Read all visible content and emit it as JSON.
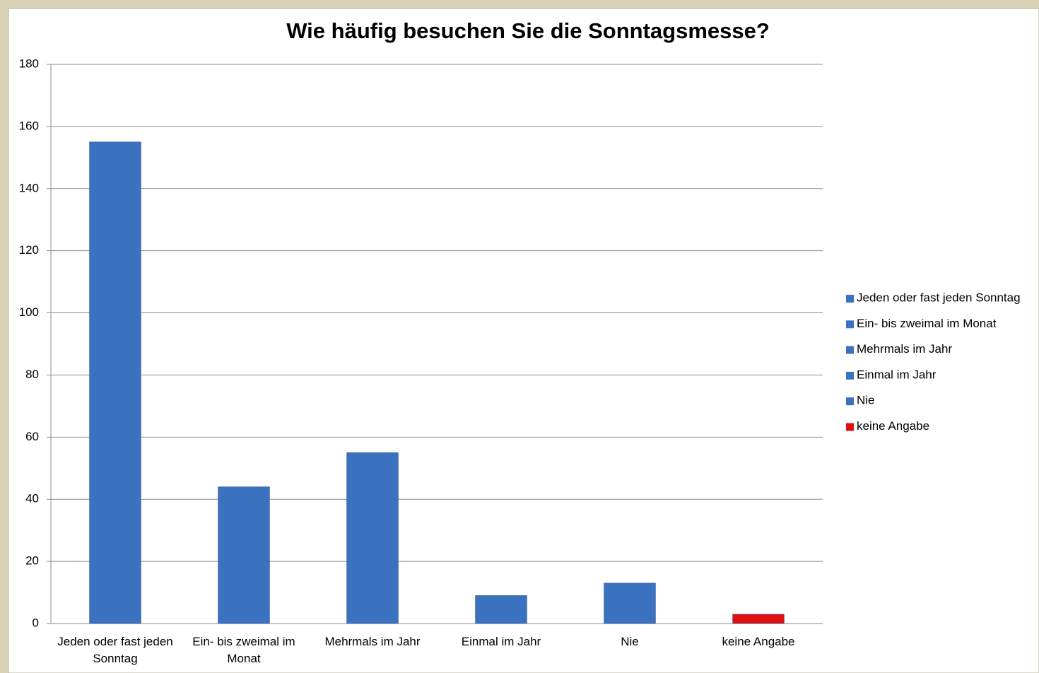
{
  "chart_data": {
    "type": "bar",
    "title": "Wie häufig besuchen Sie die Sonntagsmesse?",
    "categories": [
      "Jeden oder fast jeden Sonntag",
      "Ein- bis zweimal im Monat",
      "Mehrmals im Jahr",
      "Einmal im Jahr",
      "Nie",
      "keine Angabe"
    ],
    "values": [
      155,
      44,
      55,
      9,
      13,
      3
    ],
    "colors": [
      "#3b72bf",
      "#3b72bf",
      "#3b72bf",
      "#3b72bf",
      "#3b72bf",
      "#e01010"
    ],
    "ylim": [
      0,
      180
    ],
    "yticks": [
      0,
      20,
      40,
      60,
      80,
      100,
      120,
      140,
      160,
      180
    ],
    "grid": true,
    "legend": "right"
  }
}
